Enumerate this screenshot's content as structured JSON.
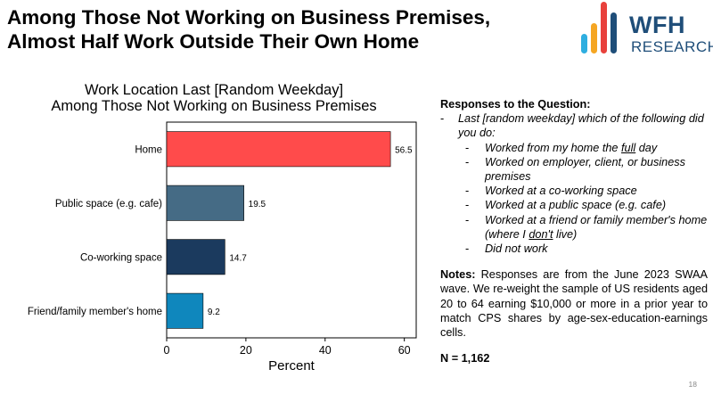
{
  "slide": {
    "title_line1": "Among Those Not Working on Business Premises,",
    "title_line2": "Almost Half Work Outside Their Own Home",
    "page_number": "18"
  },
  "logo": {
    "line1": "WFH",
    "line2": "RESEARCH",
    "bar_colors": [
      "#2eaee0",
      "#f5a623",
      "#e8413c",
      "#1f4e79"
    ]
  },
  "chart_data": {
    "type": "bar",
    "orientation": "horizontal",
    "title_line1": "Work Location Last [Random Weekday]",
    "title_line2": "Among Those Not Working on Business Premises",
    "categories": [
      "Home",
      "Public space (e.g. cafe)",
      "Co-working space",
      "Friend/family member's home"
    ],
    "values": [
      56.5,
      19.5,
      14.7,
      9.2
    ],
    "value_labels": [
      "56.5",
      "19.5",
      "14.7",
      "9.2"
    ],
    "colors": [
      "#ff4b4b",
      "#456b85",
      "#1b3a5e",
      "#0f87bd"
    ],
    "xlabel": "Percent",
    "xlim": [
      0,
      63
    ],
    "xticks": [
      0,
      20,
      40,
      60
    ],
    "xtick_labels": [
      "0",
      "20",
      "40",
      "60"
    ]
  },
  "responses": {
    "heading": "Responses to the Question:",
    "dash": "-",
    "question": "Last [random weekday] which of the following did you do:",
    "options": [
      {
        "pre": "Worked from my home the ",
        "u": "full",
        "post": " day"
      },
      {
        "pre": "Worked on employer, client, or business premises",
        "u": "",
        "post": ""
      },
      {
        "pre": "Worked at a co-working space",
        "u": "",
        "post": ""
      },
      {
        "pre": "Worked at a public space (e.g. cafe)",
        "u": "",
        "post": ""
      },
      {
        "pre": "Worked at a friend or family member's home (where I ",
        "u": "don't",
        "post": " live)"
      },
      {
        "pre": "Did not work",
        "u": "",
        "post": ""
      }
    ]
  },
  "notes": {
    "label": "Notes:",
    "text": " Responses are from the June 2023 SWAA wave. We re-weight the sample of US residents aged 20 to 64 earning $10,000 or more in a prior year to match CPS shares by age-sex-education-earnings cells.",
    "n_label": "N = 1,162"
  }
}
